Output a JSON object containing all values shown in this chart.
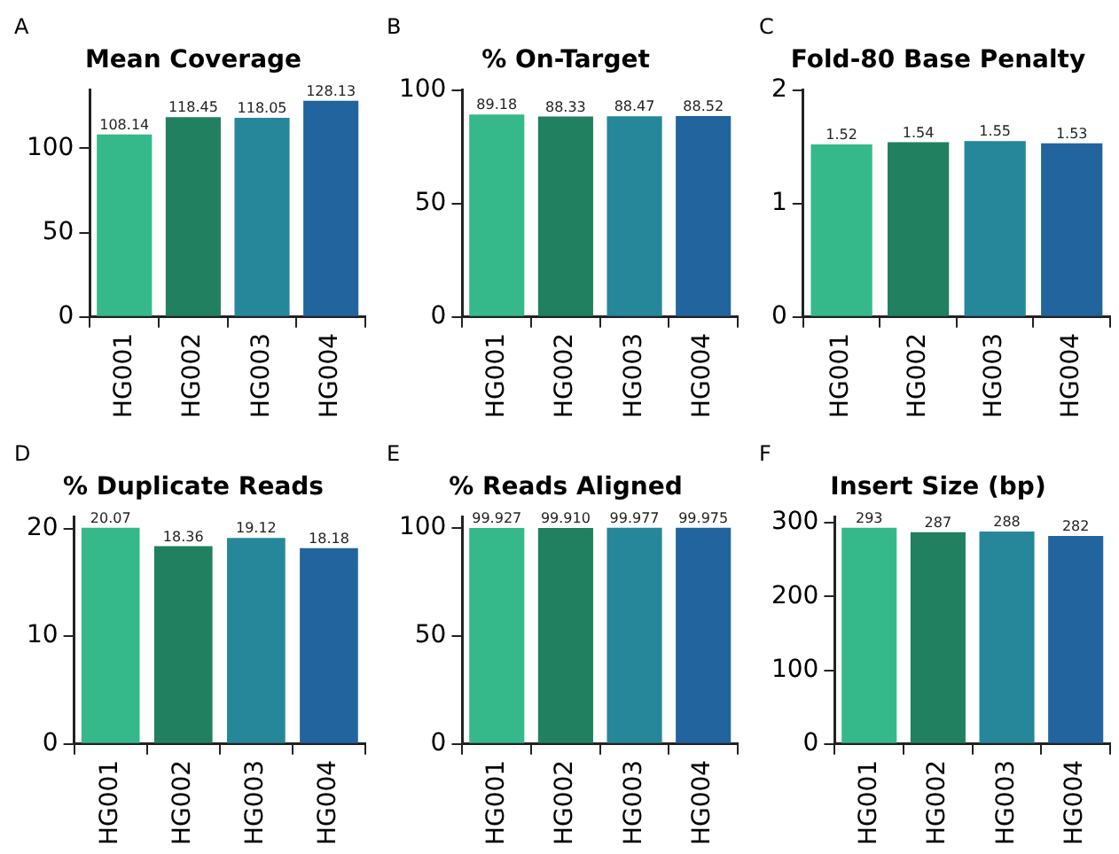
{
  "chart_data": [
    {
      "type": "bar",
      "title": "Mean Coverage",
      "annotations": [
        "A"
      ],
      "categories": [
        "HG001",
        "HG002",
        "HG003",
        "HG004"
      ],
      "values": [
        108.14,
        118.45,
        118.05,
        128.13
      ],
      "value_labels": [
        "108.14",
        "118.45",
        "118.05",
        "128.13"
      ],
      "colors": [
        "#36b98a",
        "#20805f",
        "#26879a",
        "#22649e"
      ],
      "ylim": [
        0,
        134.5
      ],
      "yticks": [
        0,
        50,
        100
      ],
      "grid": false,
      "legend": false
    },
    {
      "type": "bar",
      "title": "% On-Target",
      "annotations": [
        "B"
      ],
      "categories": [
        "HG001",
        "HG002",
        "HG003",
        "HG004"
      ],
      "values": [
        89.18,
        88.33,
        88.47,
        88.52
      ],
      "value_labels": [
        "89.18",
        "88.33",
        "88.47",
        "88.52"
      ],
      "colors": [
        "#36b98a",
        "#20805f",
        "#26879a",
        "#22649e"
      ],
      "ylim": [
        0,
        100
      ],
      "yticks": [
        0,
        50,
        100
      ],
      "grid": false,
      "legend": false
    },
    {
      "type": "bar",
      "title": "Fold-80 Base Penalty",
      "annotations": [
        "C"
      ],
      "categories": [
        "HG001",
        "HG002",
        "HG003",
        "HG004"
      ],
      "values": [
        1.52,
        1.54,
        1.55,
        1.53
      ],
      "value_labels": [
        "1.52",
        "1.54",
        "1.55",
        "1.53"
      ],
      "colors": [
        "#36b98a",
        "#20805f",
        "#26879a",
        "#22649e"
      ],
      "ylim": [
        0,
        2
      ],
      "yticks": [
        0,
        1,
        2
      ],
      "grid": false,
      "legend": false
    },
    {
      "type": "bar",
      "title": "% Duplicate Reads",
      "annotations": [
        "D"
      ],
      "categories": [
        "HG001",
        "HG002",
        "HG003",
        "HG004"
      ],
      "values": [
        20.07,
        18.36,
        19.12,
        18.18
      ],
      "value_labels": [
        "20.07",
        "18.36",
        "19.12",
        "18.18"
      ],
      "colors": [
        "#36b98a",
        "#20805f",
        "#26879a",
        "#22649e"
      ],
      "ylim": [
        0,
        21.07
      ],
      "yticks": [
        0,
        10,
        20
      ],
      "grid": false,
      "legend": false
    },
    {
      "type": "bar",
      "title": "% Reads Aligned",
      "annotations": [
        "E"
      ],
      "categories": [
        "HG001",
        "HG002",
        "HG003",
        "HG004"
      ],
      "values": [
        99.927,
        99.91,
        99.977,
        99.975
      ],
      "value_labels": [
        "99.927",
        "99.910",
        "99.977",
        "99.975"
      ],
      "colors": [
        "#36b98a",
        "#20805f",
        "#26879a",
        "#22649e"
      ],
      "ylim": [
        0,
        105
      ],
      "yticks": [
        0,
        50,
        100
      ],
      "grid": false,
      "legend": false
    },
    {
      "type": "bar",
      "title": "Insert Size (bp)",
      "annotations": [
        "F"
      ],
      "categories": [
        "HG001",
        "HG002",
        "HG003",
        "HG004"
      ],
      "values": [
        293,
        287,
        288,
        282
      ],
      "value_labels": [
        "293",
        "287",
        "288",
        "282"
      ],
      "colors": [
        "#36b98a",
        "#20805f",
        "#26879a",
        "#22649e"
      ],
      "ylim": [
        0,
        307.7
      ],
      "yticks": [
        0,
        100,
        200,
        300
      ],
      "grid": false,
      "legend": false
    }
  ]
}
